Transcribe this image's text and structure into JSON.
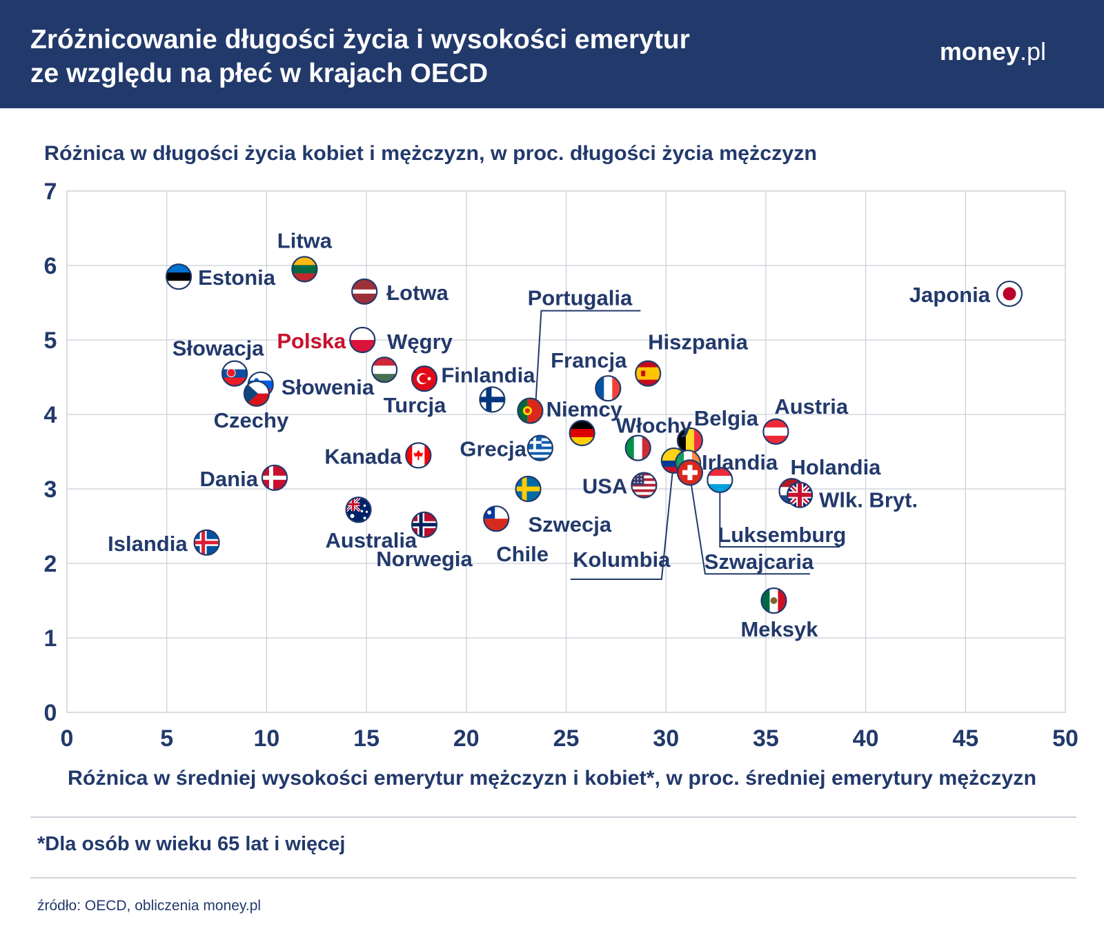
{
  "header": {
    "title_line1": "Zróżnicowanie długości życia i wysokości emerytur",
    "title_line2": "ze względu na płeć w krajach OECD",
    "brand_bold": "money",
    "brand_rest": ".pl",
    "background": "#22396b"
  },
  "chart_data": {
    "type": "scatter",
    "ylabel": "Różnica w długości życia kobiet i mężczyzn, w proc. długości życia mężczyzn",
    "xlabel": "Różnica w średniej wysokości emerytur mężczyzn i kobiet*, w proc. średniej emerytury mężczyzn",
    "xlim": [
      0,
      50
    ],
    "ylim": [
      0,
      7
    ],
    "x_ticks": [
      "0",
      "5",
      "10",
      "15",
      "20",
      "25",
      "30",
      "35",
      "40",
      "45",
      "50"
    ],
    "y_ticks": [
      "0",
      "1",
      "2",
      "3",
      "4",
      "5",
      "6",
      "7"
    ],
    "grid": true,
    "colors": {
      "text": "#22396b",
      "highlight": "#c8102e",
      "grid": "#c9cdd6"
    },
    "points": [
      {
        "name": "Estonia",
        "x": 5.6,
        "y": 5.85,
        "flag": "estonia-flag-icon"
      },
      {
        "name": "Litwa",
        "x": 11.9,
        "y": 5.95,
        "flag": "lithuania-flag-icon"
      },
      {
        "name": "Łotwa",
        "x": 14.9,
        "y": 5.65,
        "flag": "latvia-flag-icon"
      },
      {
        "name": "Polska",
        "x": 14.8,
        "y": 5.0,
        "flag": "poland-flag-icon",
        "highlight": true
      },
      {
        "name": "Słowacja",
        "x": 8.4,
        "y": 4.55,
        "flag": "slovakia-flag-icon"
      },
      {
        "name": "Słowenia",
        "x": 9.7,
        "y": 4.4,
        "flag": "slovenia-flag-icon"
      },
      {
        "name": "Czechy",
        "x": 9.5,
        "y": 4.28,
        "flag": "czechia-flag-icon"
      },
      {
        "name": "Węgry",
        "x": 15.9,
        "y": 4.6,
        "flag": "hungary-flag-icon"
      },
      {
        "name": "Turcja",
        "x": 17.9,
        "y": 4.48,
        "flag": "turkey-flag-icon"
      },
      {
        "name": "Finlandia",
        "x": 21.3,
        "y": 4.2,
        "flag": "finland-flag-icon"
      },
      {
        "name": "Portugalia",
        "x": 23.2,
        "y": 4.05,
        "flag": "portugal-flag-icon"
      },
      {
        "name": "Francja",
        "x": 27.1,
        "y": 4.35,
        "flag": "france-flag-icon"
      },
      {
        "name": "Hiszpania",
        "x": 29.1,
        "y": 4.55,
        "flag": "spain-flag-icon"
      },
      {
        "name": "Niemcy",
        "x": 25.8,
        "y": 3.75,
        "flag": "germany-flag-icon"
      },
      {
        "name": "Włochy",
        "x": 28.6,
        "y": 3.55,
        "flag": "italy-flag-icon"
      },
      {
        "name": "Belgia",
        "x": 31.2,
        "y": 3.65,
        "flag": "belgium-flag-icon"
      },
      {
        "name": "Austria",
        "x": 35.5,
        "y": 3.77,
        "flag": "austria-flag-icon"
      },
      {
        "name": "Grecja",
        "x": 23.7,
        "y": 3.55,
        "flag": "greece-flag-icon"
      },
      {
        "name": "Kanada",
        "x": 17.6,
        "y": 3.45,
        "flag": "canada-flag-icon"
      },
      {
        "name": "Kolumbia",
        "x": 30.4,
        "y": 3.38,
        "flag": "colombia-flag-icon"
      },
      {
        "name": "Irlandia",
        "x": 31.1,
        "y": 3.35,
        "flag": "ireland-flag-icon"
      },
      {
        "name": "Szwajcaria",
        "x": 31.2,
        "y": 3.22,
        "flag": "switzerland-flag-icon"
      },
      {
        "name": "Luksemburg",
        "x": 32.7,
        "y": 3.12,
        "flag": "luxembourg-flag-icon"
      },
      {
        "name": "Holandia",
        "x": 36.3,
        "y": 2.97,
        "flag": "netherlands-flag-icon"
      },
      {
        "name": "Wlk. Bryt.",
        "x": 36.7,
        "y": 2.92,
        "flag": "uk-flag-icon"
      },
      {
        "name": "USA",
        "x": 28.9,
        "y": 3.05,
        "flag": "usa-flag-icon"
      },
      {
        "name": "Szwecja",
        "x": 23.1,
        "y": 3.0,
        "flag": "sweden-flag-icon"
      },
      {
        "name": "Dania",
        "x": 10.4,
        "y": 3.15,
        "flag": "denmark-flag-icon"
      },
      {
        "name": "Australia",
        "x": 14.6,
        "y": 2.72,
        "flag": "australia-flag-icon"
      },
      {
        "name": "Norwegia",
        "x": 17.9,
        "y": 2.52,
        "flag": "norway-flag-icon"
      },
      {
        "name": "Chile",
        "x": 21.5,
        "y": 2.6,
        "flag": "chile-flag-icon"
      },
      {
        "name": "Islandia",
        "x": 7.0,
        "y": 2.28,
        "flag": "iceland-flag-icon"
      },
      {
        "name": "Meksyk",
        "x": 35.4,
        "y": 1.5,
        "flag": "mexico-flag-icon"
      },
      {
        "name": "Japonia",
        "x": 47.2,
        "y": 5.62,
        "flag": "japan-flag-icon"
      }
    ]
  },
  "footnote": "*Dla osób w wieku 65 lat i więcej",
  "source": "źródło: OECD, obliczenia money.pl"
}
